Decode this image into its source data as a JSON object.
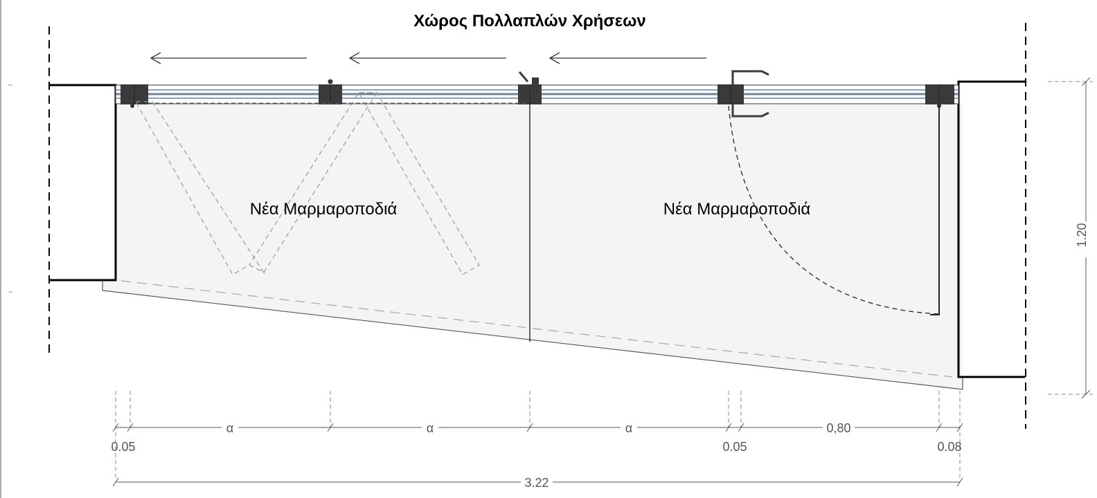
{
  "title": "Χώρος Πολλαπλών Χρήσεων",
  "rooms": {
    "left": "Νέα Μαρμαροποδιά",
    "right": "Νέα Μαρμαροποδιά"
  },
  "dimensions": {
    "panel_a_1": "α",
    "panel_a_2": "α",
    "panel_a_3": "α",
    "door_width": "0,80",
    "gap_left": "0.05",
    "gap_mid": "0.05",
    "gap_right": "0.08",
    "total": "3.22",
    "depth": "1.20"
  },
  "colors": {
    "line": "#000000",
    "dim_line": "#555555",
    "fill": "#f4f4f4",
    "hardware": "#3a3a3a",
    "rail": "#8fa3b8"
  }
}
